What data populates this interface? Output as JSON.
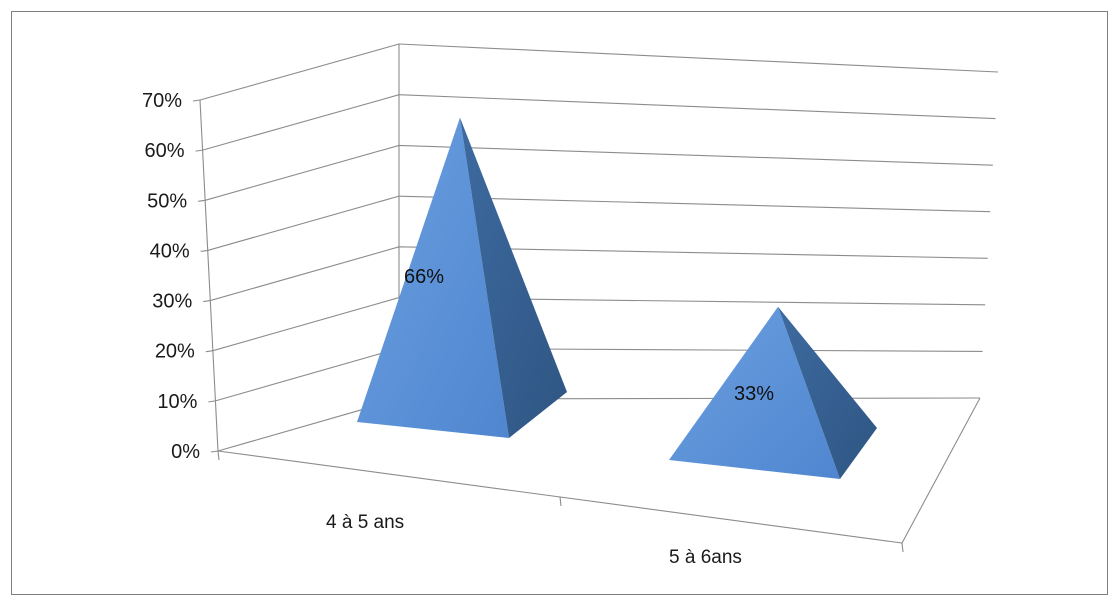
{
  "chart_data": {
    "type": "bar",
    "bar_shape": "pyramid-3d",
    "categories": [
      "4 à 5 ans",
      "5 à 6ans"
    ],
    "values": [
      0.66,
      0.33
    ],
    "data_labels": [
      "66%",
      "33%"
    ],
    "ylim": [
      0,
      0.7
    ],
    "yticks": [
      "0%",
      "10%",
      "20%",
      "30%",
      "40%",
      "50%",
      "60%",
      "70%"
    ],
    "grid": true,
    "legend": "none",
    "colors": {
      "face_light": "#5a8fd6",
      "face_dark": "#36608f",
      "grid": "#8c8c8c"
    }
  }
}
